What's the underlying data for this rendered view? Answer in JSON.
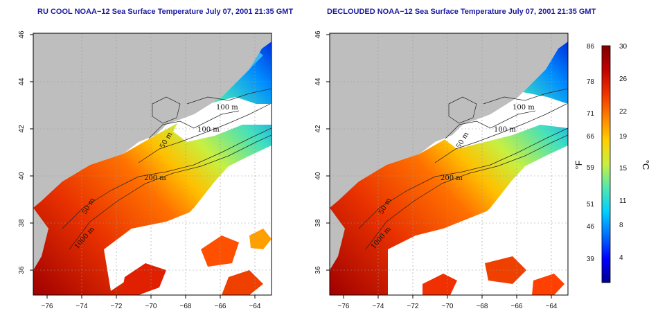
{
  "panels": [
    {
      "title": "RU COOL NOAA−12 Sea Surface Temperature July 07, 2001 21:35 GMT"
    },
    {
      "title": "DECLOUDED NOAA−12 Sea Surface Temperature July 07, 2001 21:35 GMT"
    }
  ],
  "axes": {
    "lon_ticks": [
      "−76",
      "−74",
      "−72",
      "−70",
      "−68",
      "−66",
      "−64"
    ],
    "lat_ticks": [
      "46",
      "44",
      "42",
      "40",
      "38",
      "36"
    ]
  },
  "contours": [
    "100 m",
    "100 m",
    "50 m",
    "200 m",
    "50 m",
    "1000 m"
  ],
  "colorbar": {
    "f_label": "°F",
    "c_label": "°C",
    "f_ticks": [
      "86",
      "78",
      "71",
      "66",
      "59",
      "51",
      "46",
      "39"
    ],
    "c_ticks": [
      "30",
      "26",
      "22",
      "19",
      "15",
      "11",
      "8",
      "4"
    ],
    "colors": [
      "#000090",
      "#0000ff",
      "#0070ff",
      "#00d0ff",
      "#50e8b0",
      "#c8f040",
      "#ffd000",
      "#ff8000",
      "#f03000",
      "#c00000",
      "#800000"
    ]
  },
  "colors": {
    "land": "#bebebe",
    "cloud": "#ffffff",
    "title": "#1a1aa0"
  }
}
